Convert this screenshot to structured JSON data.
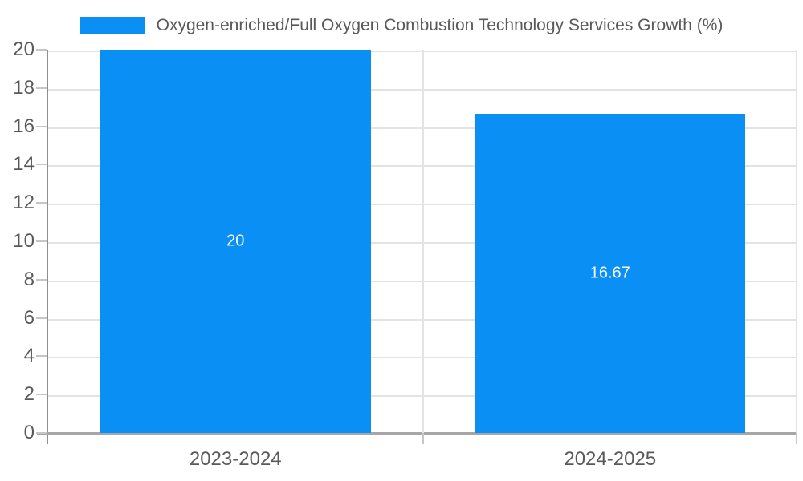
{
  "legend": {
    "label": "Oxygen-enriched/Full Oxygen Combustion Technology Services Growth (%)"
  },
  "chart_data": {
    "type": "bar",
    "title": "",
    "xlabel": "",
    "ylabel": "",
    "categories": [
      "2023-2024",
      "2024-2025"
    ],
    "values": [
      20,
      16.67
    ],
    "value_labels": [
      "20",
      "16.67"
    ],
    "series_name": "Oxygen-enriched/Full Oxygen Combustion Technology Services Growth (%)",
    "ylim": [
      0,
      20
    ],
    "yticks": [
      0,
      2,
      4,
      6,
      8,
      10,
      12,
      14,
      16,
      18,
      20
    ],
    "grid": true,
    "legend_position": "top-center",
    "colors": {
      "bar": "#0a8ff5",
      "value_label": "#ffffff",
      "axis_text": "#595959",
      "gridline": "#e3e3e3",
      "axis_line_y": "#8f8f8f",
      "axis_line_x": "#a6a6a6",
      "tick_mark": "#c6c6c6",
      "background": "#ffffff"
    }
  }
}
